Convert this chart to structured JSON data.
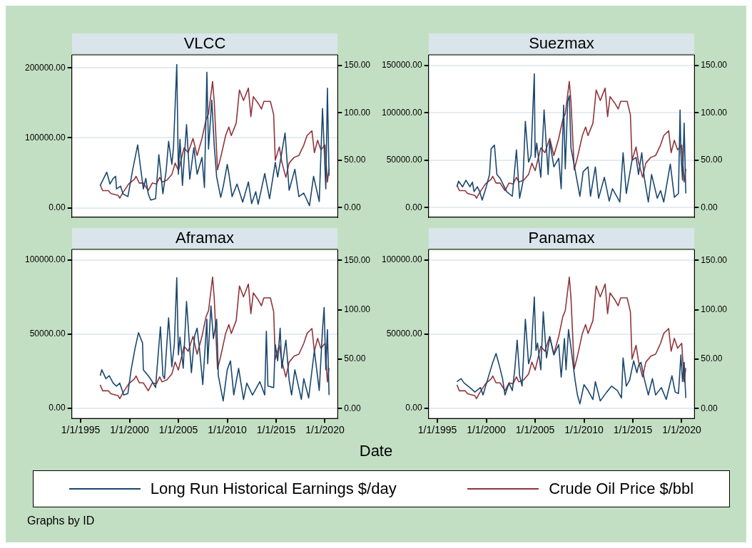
{
  "chart_data": [
    {
      "type": "line",
      "title": "VLCC",
      "xlim": [
        "1994-02-06",
        "2021-04-20"
      ],
      "ylim": [
        -13500,
        218750
      ],
      "yticks": [
        {
          "value": 0,
          "label": "0.00"
        },
        {
          "value": 100000,
          "label": "100000.00"
        },
        {
          "value": 200000,
          "label": "200000.00"
        }
      ],
      "y2lim": [
        -10,
        161
      ],
      "y2ticks": [
        {
          "value": 0,
          "label": "0.00"
        },
        {
          "value": 50,
          "label": "50.00"
        },
        {
          "value": 100,
          "label": "100.00"
        },
        {
          "value": 150,
          "label": "150.00"
        }
      ],
      "tick_labels": "y",
      "grid": "y",
      "series": [
        {
          "color": "#1a476f",
          "x": [
            "1997-01",
            "1997-07",
            "1997-09",
            "1998-01",
            "1998-05",
            "1998-08",
            "1998-09",
            "1999-02",
            "1999-05",
            "1999-11",
            "2000-05",
            "2000-11",
            "2001-02",
            "2001-06",
            "2001-09",
            "2001-12",
            "2002-03",
            "2002-09",
            "2003-01",
            "2003-03",
            "2003-06",
            "2003-10",
            "2004-01",
            "2004-05",
            "2004-07",
            "2004-11",
            "2005-01",
            "2005-03",
            "2005-06",
            "2005-11",
            "2006-03",
            "2006-08",
            "2006-12",
            "2007-06",
            "2007-09",
            "2007-12",
            "2008-02",
            "2008-06",
            "2008-09",
            "2008-12",
            "2009-05",
            "2009-08",
            "2010-01",
            "2010-03",
            "2010-07",
            "2011-01",
            "2011-08",
            "2012-03",
            "2012-07",
            "2012-12",
            "2013-03",
            "2013-11",
            "2014-05",
            "2014-12",
            "2015-03",
            "2015-07",
            "2015-12",
            "2016-05",
            "2016-12",
            "2017-05",
            "2017-11",
            "2018-06",
            "2018-11",
            "2019-06",
            "2019-10",
            "2019-12",
            "2020-02",
            "2020-04",
            "2020-06"
          ],
          "values": [
            32000,
            46000,
            51000,
            34000,
            42000,
            45000,
            27000,
            31000,
            20000,
            16000,
            55000,
            90000,
            62000,
            27000,
            42000,
            20000,
            11000,
            13000,
            76000,
            55000,
            20000,
            53000,
            95000,
            62000,
            86000,
            205000,
            48000,
            98000,
            32000,
            119000,
            41000,
            86000,
            48000,
            72000,
            29000,
            194000,
            84000,
            154000,
            89000,
            44000,
            15000,
            30000,
            62000,
            49000,
            16000,
            34000,
            8000,
            37000,
            6000,
            23000,
            5000,
            49000,
            13000,
            65000,
            44000,
            72000,
            107000,
            25000,
            55000,
            16000,
            21000,
            3000,
            45000,
            9000,
            142000,
            86000,
            27000,
            171000,
            46000
          ]
        },
        {
          "color": "#90353b",
          "axis": "y2",
          "x": [
            "1997-01",
            "1997-04",
            "1997-11",
            "1998-02",
            "1998-11",
            "1999-01",
            "1999-05",
            "1999-12",
            "2000-07",
            "2000-09",
            "2001-01",
            "2001-06",
            "2001-12",
            "2002-05",
            "2002-10",
            "2003-02",
            "2003-05",
            "2003-11",
            "2004-05",
            "2004-09",
            "2005-01",
            "2005-08",
            "2006-01",
            "2006-07",
            "2006-12",
            "2007-06",
            "2007-11",
            "2008-02",
            "2008-07",
            "2008-09",
            "2009-01",
            "2009-05",
            "2009-11",
            "2010-03",
            "2010-06",
            "2010-12",
            "2011-04",
            "2011-09",
            "2012-03",
            "2012-06",
            "2012-09",
            "2013-03",
            "2013-07",
            "2013-10",
            "2014-06",
            "2014-10",
            "2014-12",
            "2015-05",
            "2015-08",
            "2016-01",
            "2016-05",
            "2016-11",
            "2017-05",
            "2017-11",
            "2018-03",
            "2018-09",
            "2018-12",
            "2019-04",
            "2019-08",
            "2020-01",
            "2020-04",
            "2020-06"
          ],
          "values": [
            24,
            18,
            18,
            15,
            13,
            10,
            16,
            25,
            30,
            33,
            26,
            26,
            18,
            26,
            25,
            32,
            27,
            29,
            35,
            47,
            39,
            63,
            58,
            73,
            55,
            73,
            93,
            99,
            133,
            112,
            40,
            53,
            76,
            85,
            76,
            89,
            124,
            113,
            126,
            96,
            117,
            110,
            104,
            112,
            112,
            98,
            50,
            64,
            48,
            32,
            47,
            53,
            55,
            66,
            76,
            81,
            58,
            71,
            61,
            66,
            27,
            41
          ]
        }
      ]
    },
    {
      "type": "line",
      "title": "Suezmax",
      "xlim": [
        "1994-02-06",
        "2021-04-20"
      ],
      "ylim": [
        -10000,
        161000
      ],
      "yticks": [
        {
          "value": 0,
          "label": "0.00"
        },
        {
          "value": 50000,
          "label": "50000.00"
        },
        {
          "value": 100000,
          "label": "100000.00"
        },
        {
          "value": 150000,
          "label": "150000.00"
        }
      ],
      "y2lim": [
        -10,
        161
      ],
      "y2ticks": [
        {
          "value": 0,
          "label": "0.00"
        },
        {
          "value": 50,
          "label": "50.00"
        },
        {
          "value": 100,
          "label": "100.00"
        },
        {
          "value": 150,
          "label": "150.00"
        }
      ],
      "tick_labels": "y",
      "grid": "y",
      "series": [
        {
          "color": "#1a476f",
          "x": [
            "1997-01",
            "1997-03",
            "1997-08",
            "1997-12",
            "1998-05",
            "1998-08",
            "1998-10",
            "1999-02",
            "1999-05",
            "1999-08",
            "2000-01",
            "2000-05",
            "2000-07",
            "2000-11",
            "2001-02",
            "2001-06",
            "2002-02",
            "2002-09",
            "2003-02",
            "2003-06",
            "2003-10",
            "2004-01",
            "2004-05",
            "2004-08",
            "2004-12",
            "2005-01",
            "2005-03",
            "2005-08",
            "2005-12",
            "2006-05",
            "2006-07",
            "2006-12",
            "2007-06",
            "2007-09",
            "2007-12",
            "2008-02",
            "2008-05",
            "2008-07",
            "2008-09",
            "2009-02",
            "2009-08",
            "2009-12",
            "2010-06",
            "2010-09",
            "2011-03",
            "2011-07",
            "2012-02",
            "2012-08",
            "2012-12",
            "2013-09",
            "2014-01",
            "2014-05",
            "2014-12",
            "2015-05",
            "2015-08",
            "2015-12",
            "2016-03",
            "2016-08",
            "2016-12",
            "2017-07",
            "2017-11",
            "2018-03",
            "2018-11",
            "2019-04",
            "2019-09",
            "2019-11",
            "2019-12",
            "2020-02",
            "2020-04",
            "2020-06"
          ],
          "values": [
            22000,
            28000,
            22000,
            29000,
            22000,
            27000,
            17000,
            22000,
            17000,
            8000,
            22000,
            35000,
            62000,
            66000,
            35000,
            31000,
            17000,
            12000,
            61000,
            10000,
            27000,
            91000,
            48000,
            55000,
            141000,
            53000,
            68000,
            32000,
            103000,
            35000,
            70000,
            43000,
            52000,
            20000,
            108000,
            41000,
            112000,
            118000,
            63000,
            40000,
            12000,
            38000,
            43000,
            12000,
            43000,
            10000,
            32000,
            7000,
            20000,
            6000,
            58000,
            15000,
            50000,
            53000,
            35000,
            58000,
            32000,
            6000,
            35000,
            10000,
            18000,
            6000,
            46000,
            11000,
            15000,
            103000,
            58000,
            29000,
            89000,
            15000
          ]
        },
        {
          "color": "#90353b",
          "axis": "y2",
          "x": [
            "1997-01",
            "1997-04",
            "1997-11",
            "1998-02",
            "1998-11",
            "1999-01",
            "1999-05",
            "1999-12",
            "2000-07",
            "2000-09",
            "2001-01",
            "2001-06",
            "2001-12",
            "2002-05",
            "2002-10",
            "2003-02",
            "2003-05",
            "2003-11",
            "2004-05",
            "2004-09",
            "2005-01",
            "2005-08",
            "2006-01",
            "2006-07",
            "2006-12",
            "2007-06",
            "2007-11",
            "2008-02",
            "2008-07",
            "2008-09",
            "2009-01",
            "2009-05",
            "2009-11",
            "2010-03",
            "2010-06",
            "2010-12",
            "2011-04",
            "2011-09",
            "2012-03",
            "2012-06",
            "2012-09",
            "2013-03",
            "2013-07",
            "2013-10",
            "2014-06",
            "2014-10",
            "2014-12",
            "2015-05",
            "2015-08",
            "2016-01",
            "2016-05",
            "2016-11",
            "2017-05",
            "2017-11",
            "2018-03",
            "2018-09",
            "2018-12",
            "2019-04",
            "2019-08",
            "2020-01",
            "2020-04",
            "2020-06"
          ],
          "values": [
            24,
            18,
            18,
            15,
            13,
            10,
            16,
            25,
            30,
            33,
            26,
            26,
            18,
            26,
            25,
            32,
            27,
            29,
            35,
            47,
            39,
            63,
            58,
            73,
            55,
            73,
            93,
            99,
            133,
            112,
            40,
            53,
            76,
            85,
            76,
            89,
            124,
            113,
            126,
            96,
            117,
            110,
            104,
            112,
            112,
            98,
            50,
            64,
            48,
            32,
            47,
            53,
            55,
            66,
            76,
            81,
            58,
            71,
            61,
            66,
            27,
            41
          ]
        }
      ]
    },
    {
      "type": "line",
      "title": "Aframax",
      "xlim": [
        "1994-02-06",
        "2021-04-20"
      ],
      "xticks": [
        {
          "value": "1995-01-01",
          "label": "1/1/1995"
        },
        {
          "value": "2000-01-01",
          "label": "1/1/2000"
        },
        {
          "value": "2005-01-01",
          "label": "1/1/2005"
        },
        {
          "value": "2010-01-01",
          "label": "1/1/2010"
        },
        {
          "value": "2015-01-01",
          "label": "1/1/2015"
        },
        {
          "value": "2020-01-01",
          "label": "1/1/2020"
        }
      ],
      "ylim": [
        -6800,
        107100
      ],
      "yticks": [
        {
          "value": 0,
          "label": "0.00"
        },
        {
          "value": 50000,
          "label": "50000.00"
        },
        {
          "value": 100000,
          "label": "100000.00"
        }
      ],
      "y2lim": [
        -10,
        161
      ],
      "y2ticks": [
        {
          "value": 0,
          "label": "0.00"
        },
        {
          "value": 50,
          "label": "50.00"
        },
        {
          "value": 100,
          "label": "100.00"
        },
        {
          "value": 150,
          "label": "150.00"
        }
      ],
      "grid": "y",
      "series": [
        {
          "color": "#1a476f",
          "x": [
            "1997-01",
            "1997-03",
            "1997-08",
            "1997-12",
            "1998-05",
            "1998-09",
            "1999-01",
            "1999-06",
            "1999-11",
            "2000-03",
            "2000-08",
            "2000-12",
            "2001-05",
            "2001-06",
            "2001-12",
            "2002-05",
            "2002-09",
            "2002-12",
            "2003-03",
            "2003-06",
            "2003-08",
            "2004-01",
            "2004-05",
            "2004-08",
            "2004-11",
            "2005-01",
            "2005-03",
            "2005-07",
            "2005-11",
            "2006-05",
            "2006-09",
            "2006-12",
            "2007-03",
            "2007-07",
            "2007-12",
            "2008-01",
            "2008-05",
            "2008-08",
            "2008-12",
            "2009-02",
            "2009-08",
            "2010-01",
            "2010-05",
            "2010-09",
            "2011-03",
            "2011-09",
            "2012-01",
            "2012-08",
            "2013-05",
            "2013-11",
            "2014-01",
            "2014-03",
            "2014-10",
            "2014-12",
            "2015-03",
            "2015-06",
            "2015-08",
            "2016-01",
            "2016-05",
            "2016-08",
            "2016-12",
            "2017-08",
            "2017-11",
            "2018-05",
            "2018-12",
            "2019-06",
            "2019-10",
            "2019-12",
            "2020-02",
            "2020-04",
            "2020-06"
          ],
          "values": [
            22000,
            26000,
            20000,
            22000,
            17000,
            15000,
            17000,
            9000,
            10000,
            26000,
            41000,
            51000,
            44000,
            26000,
            22000,
            18000,
            14000,
            35000,
            55000,
            22000,
            20000,
            61000,
            28000,
            43000,
            88000,
            36000,
            48000,
            27000,
            72000,
            24000,
            49000,
            54000,
            40000,
            16000,
            60000,
            30000,
            69000,
            47000,
            60000,
            22000,
            5000,
            26000,
            32000,
            9000,
            27000,
            6000,
            17000,
            9000,
            18000,
            9000,
            52000,
            15000,
            14000,
            43000,
            32000,
            54000,
            27000,
            46000,
            19000,
            9000,
            26000,
            6000,
            20000,
            7000,
            39000,
            12000,
            53000,
            68000,
            26000,
            53000,
            9000
          ]
        },
        {
          "color": "#90353b",
          "axis": "y2",
          "x": [
            "1997-01",
            "1997-04",
            "1997-11",
            "1998-02",
            "1998-11",
            "1999-01",
            "1999-05",
            "1999-12",
            "2000-07",
            "2000-09",
            "2001-01",
            "2001-06",
            "2001-12",
            "2002-05",
            "2002-10",
            "2003-02",
            "2003-05",
            "2003-11",
            "2004-05",
            "2004-09",
            "2005-01",
            "2005-08",
            "2006-01",
            "2006-07",
            "2006-12",
            "2007-06",
            "2007-11",
            "2008-02",
            "2008-07",
            "2008-09",
            "2009-01",
            "2009-05",
            "2009-11",
            "2010-03",
            "2010-06",
            "2010-12",
            "2011-04",
            "2011-09",
            "2012-03",
            "2012-06",
            "2012-09",
            "2013-03",
            "2013-07",
            "2013-10",
            "2014-06",
            "2014-10",
            "2014-12",
            "2015-05",
            "2015-08",
            "2016-01",
            "2016-05",
            "2016-11",
            "2017-05",
            "2017-11",
            "2018-03",
            "2018-09",
            "2018-12",
            "2019-04",
            "2019-08",
            "2020-01",
            "2020-04",
            "2020-06"
          ],
          "values": [
            24,
            18,
            18,
            15,
            13,
            10,
            16,
            25,
            30,
            33,
            26,
            26,
            18,
            26,
            25,
            32,
            27,
            29,
            35,
            47,
            39,
            63,
            58,
            73,
            55,
            73,
            93,
            99,
            133,
            112,
            40,
            53,
            76,
            85,
            76,
            89,
            124,
            113,
            126,
            96,
            117,
            110,
            104,
            112,
            112,
            98,
            50,
            64,
            48,
            32,
            47,
            53,
            55,
            66,
            76,
            81,
            58,
            71,
            61,
            66,
            27,
            41
          ]
        }
      ]
    },
    {
      "type": "line",
      "title": "Panamax",
      "xlabel": "Date",
      "legend": "bottom",
      "annotations": [
        "Graphs by ID"
      ],
      "xlim": [
        "1994-02-06",
        "2021-04-20"
      ],
      "xticks": [
        {
          "value": "1995-01-01",
          "label": "1/1/1995"
        },
        {
          "value": "2000-01-01",
          "label": "1/1/2000"
        },
        {
          "value": "2005-01-01",
          "label": "1/1/2005"
        },
        {
          "value": "2010-01-01",
          "label": "1/1/2010"
        },
        {
          "value": "2015-01-01",
          "label": "1/1/2015"
        },
        {
          "value": "2020-01-01",
          "label": "1/1/2020"
        }
      ],
      "ylim": [
        -6800,
        107100
      ],
      "yticks": [
        {
          "value": 0,
          "label": "0.00"
        },
        {
          "value": 50000,
          "label": "50000.00"
        },
        {
          "value": 100000,
          "label": "100000.00"
        }
      ],
      "y2lim": [
        -10,
        161
      ],
      "y2ticks": [
        {
          "value": 0,
          "label": "0.00"
        },
        {
          "value": 50,
          "label": "50.00"
        },
        {
          "value": 100,
          "label": "100.00"
        },
        {
          "value": 150,
          "label": "150.00"
        }
      ],
      "grid": "y",
      "series": [
        {
          "name": "Long Run Historical Earnings $/day",
          "color": "#1a476f",
          "x": [
            "1997-01",
            "1997-06",
            "1997-10",
            "1998-05",
            "1998-11",
            "1999-06",
            "1999-09",
            "2000-03",
            "2000-09",
            "2001-01",
            "2001-05",
            "2001-09",
            "2001-12",
            "2002-05",
            "2002-09",
            "2002-12",
            "2003-03",
            "2003-06",
            "2003-09",
            "2004-01",
            "2004-05",
            "2004-08",
            "2004-12",
            "2005-02",
            "2005-04",
            "2005-08",
            "2005-11",
            "2006-03",
            "2006-07",
            "2006-12",
            "2007-06",
            "2007-09",
            "2008-01",
            "2008-03",
            "2008-06",
            "2008-09",
            "2009-02",
            "2009-05",
            "2009-08",
            "2010-01",
            "2010-06",
            "2010-12",
            "2011-03",
            "2011-09",
            "2012-05",
            "2012-11",
            "2013-06",
            "2013-11",
            "2014-01",
            "2014-05",
            "2014-09",
            "2015-02",
            "2015-06",
            "2015-08",
            "2015-11",
            "2016-03",
            "2016-08",
            "2017-01",
            "2017-05",
            "2017-12",
            "2018-06",
            "2019-01",
            "2019-05",
            "2019-09",
            "2019-11",
            "2019-12",
            "2020-02",
            "2020-04",
            "2020-06"
          ],
          "values": [
            18000,
            20000,
            17000,
            14000,
            11000,
            14000,
            9000,
            20000,
            31000,
            37000,
            29000,
            20000,
            9000,
            17000,
            12000,
            26000,
            46000,
            22000,
            15000,
            60000,
            30000,
            36000,
            75000,
            39000,
            44000,
            26000,
            65000,
            34000,
            48000,
            36000,
            43000,
            21000,
            47000,
            26000,
            53000,
            41000,
            19000,
            9000,
            3000,
            16000,
            12000,
            6000,
            18000,
            5000,
            11000,
            15000,
            12000,
            7000,
            34000,
            15000,
            19000,
            32000,
            24000,
            29000,
            31000,
            20000,
            9000,
            20000,
            9000,
            14000,
            6000,
            22000,
            11000,
            10000,
            27000,
            36000,
            18000,
            31000,
            7000
          ]
        },
        {
          "name": "Crude Oil Price $/bbl",
          "color": "#90353b",
          "axis": "y2",
          "x": [
            "1997-01",
            "1997-04",
            "1997-11",
            "1998-02",
            "1998-11",
            "1999-01",
            "1999-05",
            "1999-12",
            "2000-07",
            "2000-09",
            "2001-01",
            "2001-06",
            "2001-12",
            "2002-05",
            "2002-10",
            "2003-02",
            "2003-05",
            "2003-11",
            "2004-05",
            "2004-09",
            "2005-01",
            "2005-08",
            "2006-01",
            "2006-07",
            "2006-12",
            "2007-06",
            "2007-11",
            "2008-02",
            "2008-07",
            "2008-09",
            "2009-01",
            "2009-05",
            "2009-11",
            "2010-03",
            "2010-06",
            "2010-12",
            "2011-04",
            "2011-09",
            "2012-03",
            "2012-06",
            "2012-09",
            "2013-03",
            "2013-07",
            "2013-10",
            "2014-06",
            "2014-10",
            "2014-12",
            "2015-05",
            "2015-08",
            "2016-01",
            "2016-05",
            "2016-11",
            "2017-05",
            "2017-11",
            "2018-03",
            "2018-09",
            "2018-12",
            "2019-04",
            "2019-08",
            "2020-01",
            "2020-04",
            "2020-06"
          ],
          "values": [
            24,
            18,
            18,
            15,
            13,
            10,
            16,
            25,
            30,
            33,
            26,
            26,
            18,
            26,
            25,
            32,
            27,
            29,
            35,
            47,
            39,
            63,
            58,
            73,
            55,
            73,
            93,
            99,
            133,
            112,
            40,
            53,
            76,
            85,
            76,
            89,
            124,
            113,
            126,
            96,
            117,
            110,
            104,
            112,
            112,
            98,
            50,
            64,
            48,
            32,
            47,
            53,
            55,
            66,
            76,
            81,
            58,
            71,
            61,
            66,
            27,
            41
          ]
        }
      ]
    }
  ]
}
